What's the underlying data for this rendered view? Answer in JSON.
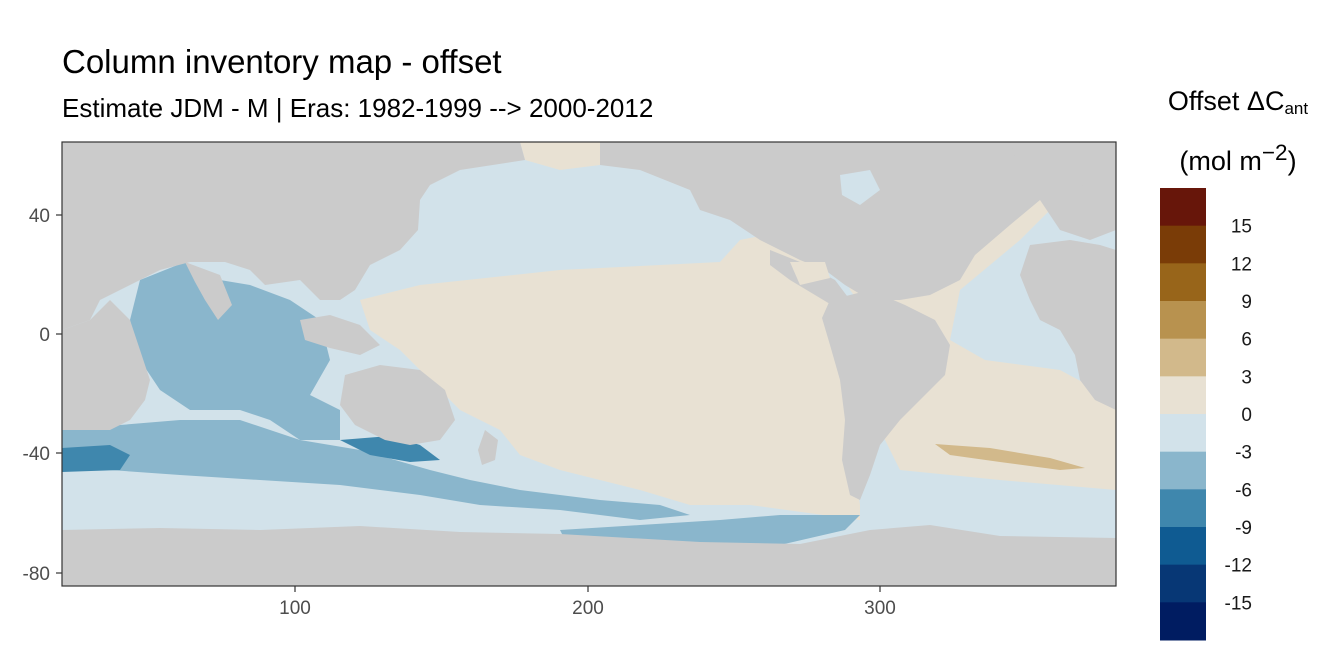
{
  "title": "Column inventory map - offset",
  "subtitle": "Estimate JDM - M | Eras: 1982-1999 --> 2000-2012",
  "legend": {
    "title_main": "Offset ΔC",
    "title_sub": "ant",
    "unit_pre": "(mol m",
    "unit_sup": "−2",
    "unit_post": ")",
    "bins": [
      {
        "color": "#67160a"
      },
      {
        "color": "#7a3c07"
      },
      {
        "color": "#98651a"
      },
      {
        "color": "#b8924f"
      },
      {
        "color": "#d2b98b"
      },
      {
        "color": "#e8e1d3"
      },
      {
        "color": "#d2e2ea"
      },
      {
        "color": "#8ab6cc"
      },
      {
        "color": "#3f87ad"
      },
      {
        "color": "#0f5b92"
      },
      {
        "color": "#073775"
      },
      {
        "color": "#001c61"
      }
    ],
    "labels": [
      "15",
      "12",
      "9",
      "6",
      "3",
      "0",
      "-3",
      "-6",
      "-9",
      "-12",
      "-15"
    ]
  },
  "axes": {
    "x_ticks": [
      "100",
      "200",
      "300"
    ],
    "y_ticks": [
      "40",
      "0",
      "-40",
      "-80"
    ],
    "xlim": [
      20,
      380
    ],
    "ylim": [
      -85,
      65
    ]
  },
  "colors": {
    "land": "#cbcbcb",
    "panel_border": "#333333"
  }
}
